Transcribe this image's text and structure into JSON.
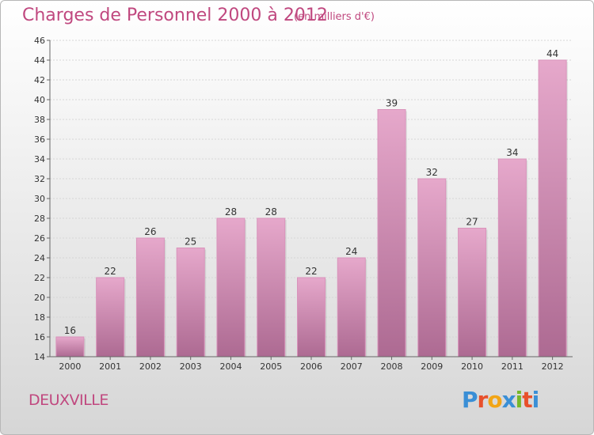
{
  "header": {
    "title": "Charges de Personnel 2000 à 2012",
    "unit": "(en milliers d'€)"
  },
  "footer": {
    "commune": "DEUXVILLE",
    "logo": "Proxiti"
  },
  "colors": {
    "accent": "#c0487f",
    "bar_light": "#e6a8cb",
    "bar_dark": "#ad6a92"
  },
  "chart_data": {
    "type": "bar",
    "title": "Charges de Personnel 2000 à 2012",
    "subtitle": "(en milliers d'€)",
    "categories": [
      "2000",
      "2001",
      "2002",
      "2003",
      "2004",
      "2005",
      "2006",
      "2007",
      "2008",
      "2009",
      "2010",
      "2011",
      "2012"
    ],
    "values": [
      16,
      22,
      26,
      25,
      28,
      28,
      22,
      24,
      39,
      32,
      27,
      34,
      44
    ],
    "ylim": [
      14,
      46
    ],
    "yticks": [
      14,
      16,
      18,
      20,
      22,
      24,
      26,
      28,
      30,
      32,
      34,
      36,
      38,
      40,
      42,
      44,
      46
    ],
    "grid": true,
    "data_labels": true
  }
}
